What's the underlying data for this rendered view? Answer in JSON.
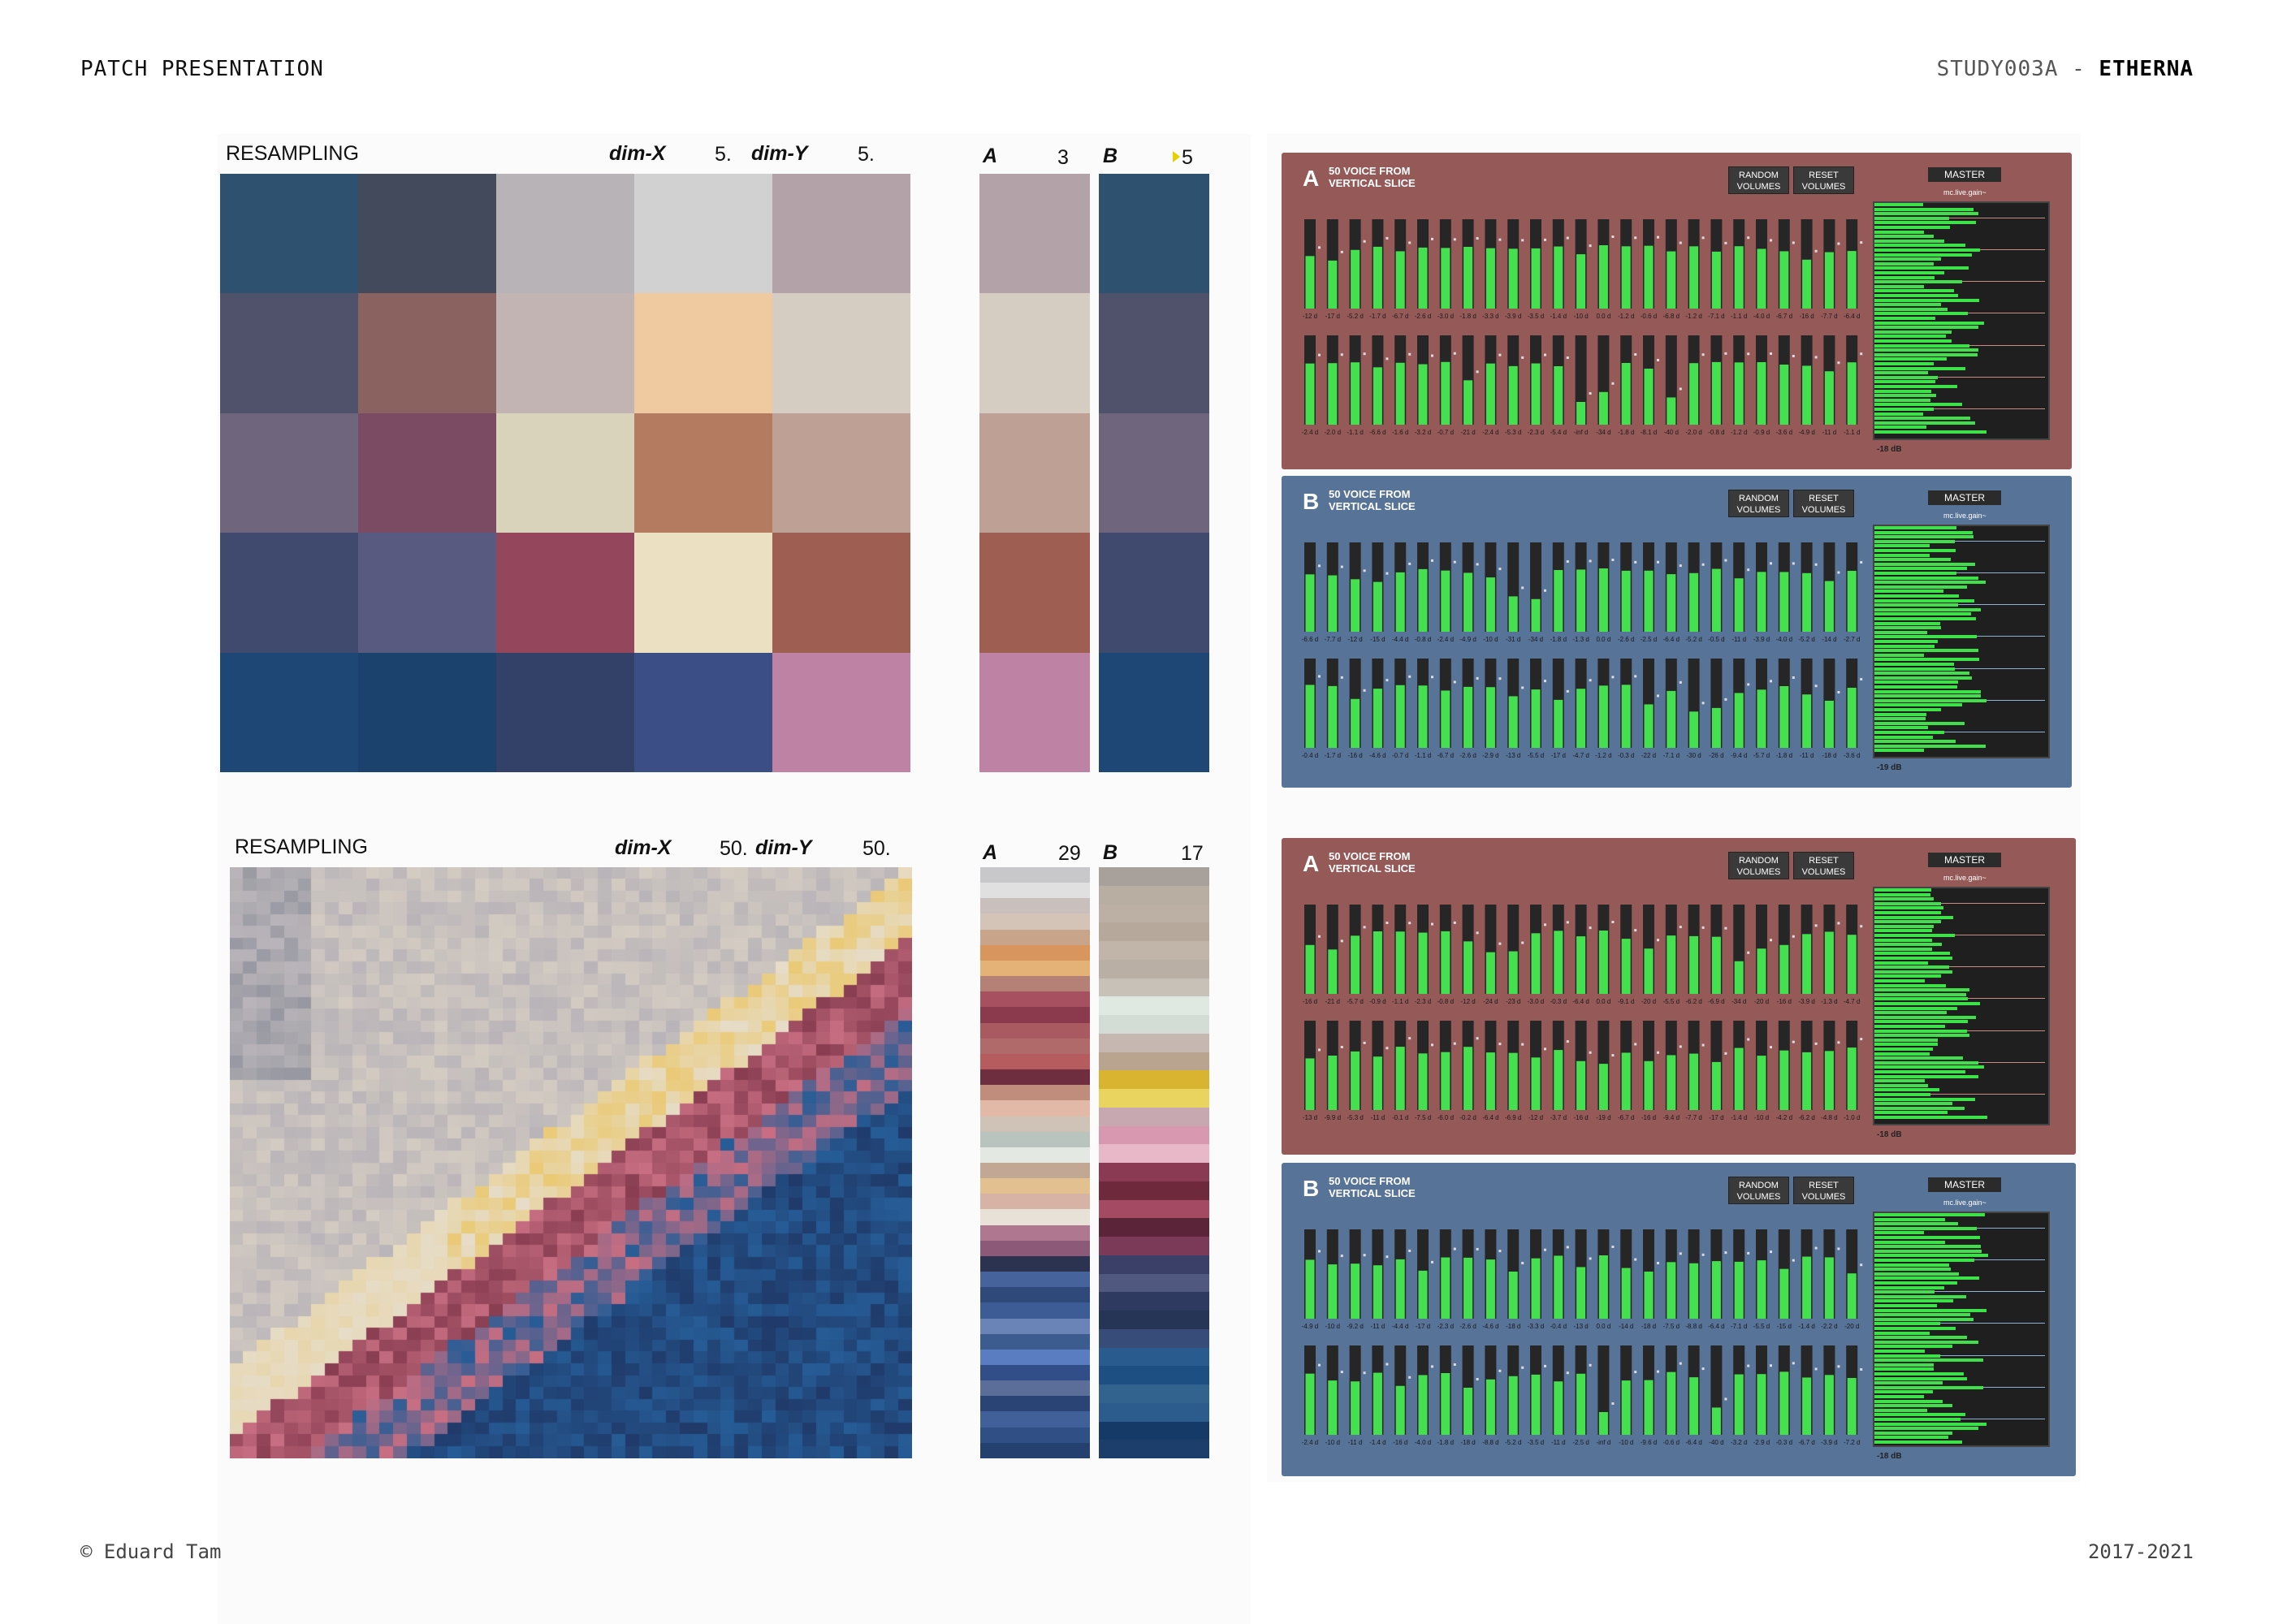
{
  "header": {
    "left": "PATCH PRESENTATION",
    "right_prefix": "STUDY003A - ",
    "right_title": "ETHERNA"
  },
  "footer": {
    "left": "© Eduard Tam",
    "right": "2017-2021"
  },
  "resampling_top": {
    "label": "RESAMPLING",
    "dimx_label": "dim-X",
    "dimx_value": "5.",
    "dimy_label": "dim-Y",
    "dimy_value": "5.",
    "colors": [
      [
        "#2e516f",
        "#434a5c",
        "#b8b3b6",
        "#d2d1d2",
        "#b3a3a9"
      ],
      [
        "#4f526a",
        "#8a6360",
        "#c2b4b2",
        "#efc99f",
        "#d6cdc2"
      ],
      [
        "#6f667d",
        "#7a4b63",
        "#d9d3bc",
        "#b57b60",
        "#bea095"
      ],
      [
        "#3f4a6e",
        "#585b7f",
        "#93465c",
        "#ebe0c2",
        "#9f5e52"
      ],
      [
        "#1e4775",
        "#1a426c",
        "#334169",
        "#3b4e86",
        "#be83a4"
      ]
    ]
  },
  "palette_top": {
    "a_label": "A",
    "a_value": "3",
    "b_label": "B",
    "b_value": "5",
    "a_colors": [
      "#b3a3a9",
      "#d6cdc2",
      "#bea095",
      "#9f5e52",
      "#be83a4"
    ],
    "b_colors": [
      "#2e516f",
      "#4f526a",
      "#6f667d",
      "#3f4a6e",
      "#1e4775"
    ]
  },
  "resampling_bottom": {
    "label": "RESAMPLING",
    "dimx_label": "dim-X",
    "dimx_value": "50.",
    "dimy_label": "dim-Y",
    "dimy_value": "50."
  },
  "palette_bottom": {
    "a_label": "A",
    "a_value": "29",
    "b_label": "B",
    "b_value": "17",
    "a_colors": [
      "#c8c8ca",
      "#e0e0e0",
      "#c9c0bd",
      "#d4c4b8",
      "#c8a48a",
      "#d8955e",
      "#e4b277",
      "#b58075",
      "#a65060",
      "#8a3a4c",
      "#a85a60",
      "#b06a6a",
      "#b75c5e",
      "#6e2e40",
      "#c08c7c",
      "#e2b9a6",
      "#cfc3b8",
      "#b8c4bd",
      "#e4e8e2",
      "#c2a894",
      "#e3c08f",
      "#d6b3a4",
      "#e8e1d8",
      "#b07890",
      "#8c5a78",
      "#2c3350",
      "#47639b",
      "#2f4a7a",
      "#3d5b94",
      "#6b84b8",
      "#3c5c90",
      "#5a7cc0",
      "#324e88",
      "#5b6d99",
      "#2a4476",
      "#41609a",
      "#2f4f85",
      "#24406e"
    ],
    "b_colors": [
      "#a8a09a",
      "#b9aea2",
      "#bcb0a4",
      "#b6a99c",
      "#c0b5a8",
      "#b9afa4",
      "#c8c1b8",
      "#e0e8e2",
      "#d4dcd6",
      "#c6b8b0",
      "#b9a490",
      "#d8b430",
      "#e8d45e",
      "#c8a8b0",
      "#d898b0",
      "#e8b8c8",
      "#8a3a52",
      "#6e2a3c",
      "#a44a62",
      "#5c2438",
      "#7a3a58",
      "#3a4068",
      "#505880",
      "#2e3a60",
      "#263456",
      "#384c7a",
      "#2a5b8e",
      "#1e4f82",
      "#32638f",
      "#2c5c8e",
      "#163a68",
      "#1c3e6a"
    ]
  },
  "panels": [
    {
      "letter": "A",
      "title": "50 VOICE FROM VERTICAL SLICE",
      "btn_random": "RANDOM VOLUMES",
      "btn_reset": "RESET VOLUMES",
      "master": "MASTER",
      "master_sub": "mc.live.gain~",
      "db": "-18 dB",
      "row1": [
        "-12 d",
        "-17 d",
        "-5.2 d",
        "-1.7 d",
        "-6.7 d",
        "-2.6 d",
        "-3.0 d",
        "-1.8 d",
        "-3.3 d",
        "-3.9 d",
        "-3.5 d",
        "-1.4 d",
        "-10 d",
        "0.0 d",
        "-1.2 d",
        "-0.6 d",
        "-6.8 d",
        "-1.2 d",
        "-7.1 d",
        "-1.1 d",
        "-4.0 d",
        "-6.7 d",
        "-16 d",
        "-7.7 d",
        "-6.4 d"
      ],
      "row2": [
        "-2.4 d",
        "-2.0 d",
        "-1.1 d",
        "-6.6 d",
        "-1.6 d",
        "-3.2 d",
        "-0.7 d",
        "-21 d",
        "-2.4 d",
        "-5.3 d",
        "-2.3 d",
        "-5.4 d",
        "-inf d",
        "-34 d",
        "-1.8 d",
        "-8.1 d",
        "-40 d",
        "-2.0 d",
        "-0.8 d",
        "-1.2 d",
        "-0.9 d",
        "-3.6 d",
        "-4.9 d",
        "-11 d",
        "-1.1 d"
      ]
    },
    {
      "letter": "B",
      "title": "50 VOICE FROM VERTICAL SLICE",
      "btn_random": "RANDOM VOLUMES",
      "btn_reset": "RESET VOLUMES",
      "master": "MASTER",
      "master_sub": "mc.live.gain~",
      "db": "-19 dB",
      "row1": [
        "-6.6 d",
        "-7.7 d",
        "-12 d",
        "-15 d",
        "-4.4 d",
        "-0.8 d",
        "-2.4 d",
        "-4.9 d",
        "-10 d",
        "-31 d",
        "-34 d",
        "-1.8 d",
        "-1.3 d",
        "0.0 d",
        "-2.6 d",
        "-2.5 d",
        "-6.4 d",
        "-5.2 d",
        "-0.5 d",
        "-11 d",
        "-3.9 d",
        "-4.0 d",
        "-5.2 d",
        "-14 d",
        "-2.7 d"
      ],
      "row2": [
        "-0.4 d",
        "-1.7 d",
        "-16 d",
        "-4.6 d",
        "-0.7 d",
        "-1.1 d",
        "-6.7 d",
        "-2.6 d",
        "-2.9 d",
        "-13 d",
        "-5.5 d",
        "-17 d",
        "-4.7 d",
        "-1.2 d",
        "-0.3 d",
        "-22 d",
        "-7.1 d",
        "-30 d",
        "-26 d",
        "-9.4 d",
        "-5.7 d",
        "-1.8 d",
        "-11 d",
        "-18 d",
        "-3.6 d"
      ]
    },
    {
      "letter": "A",
      "title": "50 VOICE FROM VERTICAL SLICE",
      "btn_random": "RANDOM VOLUMES",
      "btn_reset": "RESET VOLUMES",
      "master": "MASTER",
      "master_sub": "mc.live.gain~",
      "db": "-18 dB",
      "row1": [
        "-16 d",
        "-21 d",
        "-5.7 d",
        "-0.9 d",
        "-1.1 d",
        "-2.3 d",
        "-0.8 d",
        "-12 d",
        "-24 d",
        "-23 d",
        "-3.0 d",
        "-0.3 d",
        "-6.4 d",
        "0.0 d",
        "-9.1 d",
        "-20 d",
        "-5.5 d",
        "-6.2 d",
        "-6.9 d",
        "-34 d",
        "-20 d",
        "-16 d",
        "-3.9 d",
        "-1.3 d",
        "-4.7 d"
      ],
      "row2": [
        "-13 d",
        "-9.9 d",
        "-5.3 d",
        "-11 d",
        "-0.1 d",
        "-7.5 d",
        "-6.0 d",
        "-0.2 d",
        "-6.4 d",
        "-6.9 d",
        "-12 d",
        "-3.7 d",
        "-16 d",
        "-19 d",
        "-6.7 d",
        "-16 d",
        "-9.4 d",
        "-7.7 d",
        "-17 d",
        "-1.4 d",
        "-10 d",
        "-4.2 d",
        "-6.2 d",
        "-4.8 d",
        "-1.0 d"
      ]
    },
    {
      "letter": "B",
      "title": "50 VOICE FROM VERTICAL SLICE",
      "btn_random": "RANDOM VOLUMES",
      "btn_reset": "RESET VOLUMES",
      "master": "MASTER",
      "master_sub": "mc.live.gain~",
      "db": "-18 dB",
      "row1": [
        "-4.9 d",
        "-10 d",
        "-9.2 d",
        "-11 d",
        "-4.4 d",
        "-17 d",
        "-2.3 d",
        "-2.6 d",
        "-4.6 d",
        "-18 d",
        "-3.3 d",
        "-0.4 d",
        "-13 d",
        "0.0 d",
        "-14 d",
        "-18 d",
        "-7.5 d",
        "-8.8 d",
        "-6.4 d",
        "-7.1 d",
        "-5.5 d",
        "-15 d",
        "-1.4 d",
        "-2.2 d",
        "-20 d"
      ],
      "row2": [
        "-2.4 d",
        "-10 d",
        "-11 d",
        "-1.4 d",
        "-16 d",
        "-4.0 d",
        "-1.8 d",
        "-18 d",
        "-8.8 d",
        "-5.2 d",
        "-3.5 d",
        "-11 d",
        "-2.5 d",
        "-inf d",
        "-10 d",
        "-9.6 d",
        "-0.6 d",
        "-6.4 d",
        "-40 d",
        "-3.2 d",
        "-2.9 d",
        "-0.3 d",
        "-6.7 d",
        "-3.9 d",
        "-7.2 d"
      ]
    }
  ]
}
